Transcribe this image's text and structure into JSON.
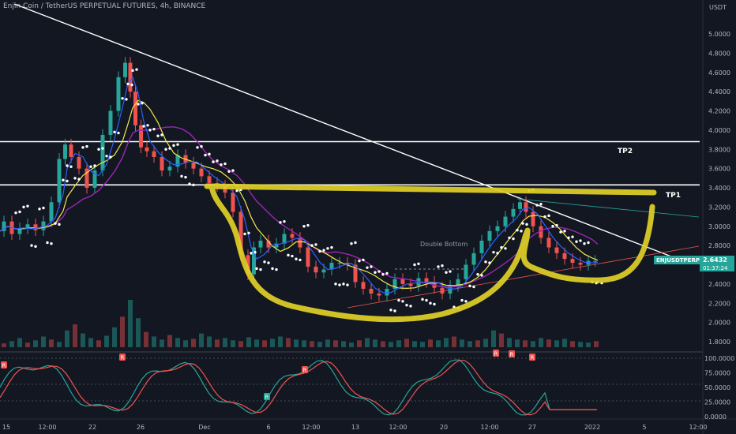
{
  "chart_title": "Enjin Coin / TetherUS PERPETUAL FUTURES, 4h, BINANCE",
  "price_axis_unit": "USDT",
  "price_ticks": [
    "5.0000",
    "4.8000",
    "4.6000",
    "4.4000",
    "4.2000",
    "4.0000",
    "3.8000",
    "3.6000",
    "3.4000",
    "3.2000",
    "3.0000",
    "2.8000",
    "2.6000",
    "2.4000",
    "2.2000",
    "2.0000",
    "1.8000"
  ],
  "oscillator_ticks": [
    "100.0000",
    "75.0000",
    "50.0000",
    "25.0000",
    "0.0000"
  ],
  "x_ticks": [
    "15",
    "12:00",
    "22",
    "26",
    "Dec",
    "6",
    "12:00",
    "13",
    "12:00",
    "20",
    "12:00",
    "27",
    "2022",
    "5",
    "12:00"
  ],
  "annotations": {
    "tp1": "TP1",
    "tp2": "TP2",
    "pattern": "Double Bottom"
  },
  "price_tag": {
    "symbol": "ENJUSDTPERP",
    "price": "2.6432",
    "countdown": "01:37:24"
  },
  "oscillator_markers": [
    "R",
    "R",
    "R",
    "R",
    "R",
    "R",
    "R"
  ],
  "colors": {
    "background": "#131722",
    "bull": "#26a69a",
    "bear": "#ef5350",
    "highlight": "#e0d027",
    "ma_yellow": "#f5e84a",
    "ma_blue": "#2962ff",
    "ma_purple": "#9c27b0",
    "price_tag": "#26a69a"
  },
  "chart_data": {
    "type": "candlestick",
    "ylim": [
      1.75,
      5.08
    ],
    "horizontal_levels": [
      3.88,
      3.43
    ],
    "highlight_level": 3.32,
    "price_series": [
      [
        0,
        2.95
      ],
      [
        10,
        3.05
      ],
      [
        20,
        2.92
      ],
      [
        30,
        2.98
      ],
      [
        40,
        3.02
      ],
      [
        50,
        2.96
      ],
      [
        60,
        3.05
      ],
      [
        70,
        3.25
      ],
      [
        80,
        3.7
      ],
      [
        85,
        3.85
      ],
      [
        95,
        3.72
      ],
      [
        105,
        3.6
      ],
      [
        115,
        3.4
      ],
      [
        125,
        3.58
      ],
      [
        135,
        3.95
      ],
      [
        145,
        4.2
      ],
      [
        155,
        4.55
      ],
      [
        162,
        4.7
      ],
      [
        168,
        4.4
      ],
      [
        175,
        4.05
      ],
      [
        182,
        3.82
      ],
      [
        190,
        3.78
      ],
      [
        200,
        3.72
      ],
      [
        210,
        3.58
      ],
      [
        220,
        3.62
      ],
      [
        230,
        3.74
      ],
      [
        240,
        3.66
      ],
      [
        250,
        3.6
      ],
      [
        260,
        3.52
      ],
      [
        270,
        3.45
      ],
      [
        280,
        3.42
      ],
      [
        290,
        3.35
      ],
      [
        300,
        3.15
      ],
      [
        310,
        2.7
      ],
      [
        318,
        2.5
      ],
      [
        325,
        2.78
      ],
      [
        335,
        2.85
      ],
      [
        345,
        2.78
      ],
      [
        355,
        2.82
      ],
      [
        365,
        2.92
      ],
      [
        375,
        2.88
      ],
      [
        385,
        2.78
      ],
      [
        395,
        2.58
      ],
      [
        405,
        2.52
      ],
      [
        415,
        2.55
      ],
      [
        425,
        2.62
      ],
      [
        435,
        2.62
      ],
      [
        445,
        2.6
      ],
      [
        455,
        2.42
      ],
      [
        465,
        2.35
      ],
      [
        475,
        2.3
      ],
      [
        485,
        2.28
      ],
      [
        495,
        2.35
      ],
      [
        505,
        2.45
      ],
      [
        515,
        2.4
      ],
      [
        525,
        2.38
      ],
      [
        535,
        2.46
      ],
      [
        545,
        2.42
      ],
      [
        555,
        2.36
      ],
      [
        565,
        2.3
      ],
      [
        575,
        2.38
      ],
      [
        585,
        2.45
      ],
      [
        595,
        2.6
      ],
      [
        605,
        2.72
      ],
      [
        615,
        2.85
      ],
      [
        625,
        2.95
      ],
      [
        635,
        3.0
      ],
      [
        645,
        3.1
      ],
      [
        655,
        3.18
      ],
      [
        662,
        3.25
      ],
      [
        670,
        3.15
      ],
      [
        680,
        3.0
      ],
      [
        690,
        2.88
      ],
      [
        700,
        2.78
      ],
      [
        710,
        2.72
      ],
      [
        720,
        2.66
      ],
      [
        730,
        2.62
      ],
      [
        740,
        2.6
      ],
      [
        750,
        2.64
      ],
      [
        757,
        2.64
      ]
    ],
    "volume": [
      5,
      8,
      12,
      6,
      9,
      14,
      10,
      7,
      22,
      30,
      18,
      12,
      9,
      15,
      26,
      40,
      62,
      38,
      20,
      14,
      10,
      16,
      12,
      9,
      11,
      18,
      14,
      10,
      12,
      9,
      8,
      13,
      10,
      9,
      11,
      14,
      12,
      10,
      9,
      8,
      7,
      10,
      9,
      8,
      6,
      9,
      12,
      10,
      8,
      7,
      9,
      11,
      8,
      7,
      10,
      9,
      12,
      14,
      10,
      8,
      9,
      11,
      22,
      18,
      12,
      10,
      9,
      8,
      12,
      10,
      9,
      11,
      8,
      7,
      6,
      8
    ]
  }
}
